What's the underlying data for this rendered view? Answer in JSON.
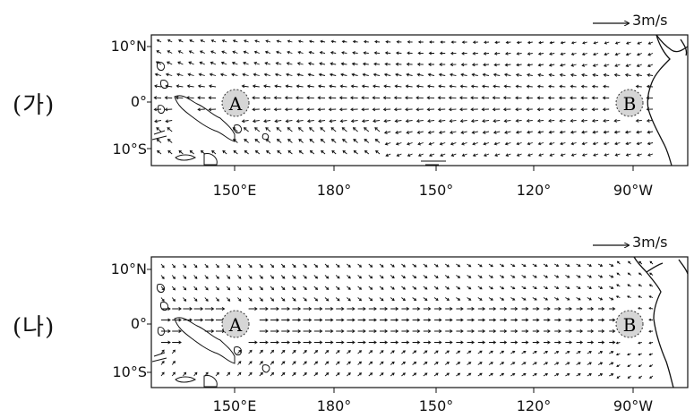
{
  "panels": [
    {
      "label": "(가)",
      "scale_label": "3m/s",
      "lat_ticks": [
        "10°N",
        "0°",
        "10°S"
      ],
      "lon_ticks": [
        "150°E",
        "180°",
        "150°",
        "120°",
        "90°W"
      ],
      "points": [
        {
          "name": "A",
          "label": "A"
        },
        {
          "name": "B",
          "label": "B"
        }
      ],
      "wind_regime": "westward"
    },
    {
      "label": "(나)",
      "scale_label": "3m/s",
      "lat_ticks": [
        "10°N",
        "0°",
        "10°S"
      ],
      "lon_ticks": [
        "150°E",
        "180°",
        "150°",
        "120°",
        "90°W"
      ],
      "points": [
        {
          "name": "A",
          "label": "A"
        },
        {
          "name": "B",
          "label": "B"
        }
      ],
      "wind_regime": "eastward"
    }
  ],
  "colors": {
    "line": "#111111",
    "point_fill": "#d6d6d6",
    "point_stroke": "#333333"
  }
}
